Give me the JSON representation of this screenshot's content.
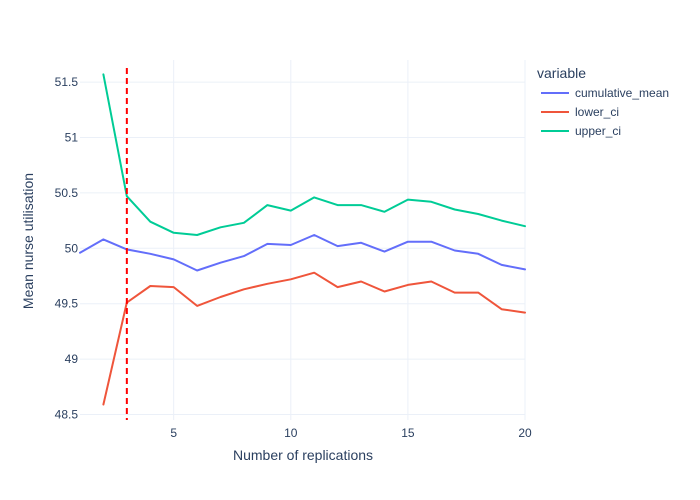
{
  "chart_data": {
    "type": "line",
    "title": "",
    "xlabel": "Number of replications",
    "ylabel": "Mean nurse utilisation",
    "xlim": [
      1,
      20
    ],
    "ylim": [
      48.45,
      51.7
    ],
    "xticks": [
      5,
      10,
      15,
      20
    ],
    "yticks": [
      48.5,
      49,
      49.5,
      50,
      50.5,
      51,
      51.5
    ],
    "grid": true,
    "legend": {
      "title": "variable",
      "placement": "right-top"
    },
    "vline": {
      "x": 3,
      "color": "#ff0000",
      "style": "dashed"
    },
    "series": [
      {
        "name": "cumulative_mean",
        "color": "#636efa",
        "x": [
          1,
          2,
          3,
          4,
          5,
          6,
          7,
          8,
          9,
          10,
          11,
          12,
          13,
          14,
          15,
          16,
          17,
          18,
          19,
          20
        ],
        "y": [
          49.96,
          50.08,
          49.99,
          49.95,
          49.9,
          49.8,
          49.87,
          49.93,
          50.04,
          50.03,
          50.12,
          50.02,
          50.05,
          49.97,
          50.06,
          50.06,
          49.98,
          49.95,
          49.85,
          49.81
        ]
      },
      {
        "name": "lower_ci",
        "color": "#ef553b",
        "x": [
          2,
          3,
          4,
          5,
          6,
          7,
          8,
          9,
          10,
          11,
          12,
          13,
          14,
          15,
          16,
          17,
          18,
          19,
          20
        ],
        "y": [
          48.59,
          49.51,
          49.66,
          49.65,
          49.48,
          49.56,
          49.63,
          49.68,
          49.72,
          49.78,
          49.65,
          49.7,
          49.61,
          49.67,
          49.7,
          49.6,
          49.6,
          49.45,
          49.42
        ]
      },
      {
        "name": "upper_ci",
        "color": "#00cc96",
        "x": [
          2,
          3,
          4,
          5,
          6,
          7,
          8,
          9,
          10,
          11,
          12,
          13,
          14,
          15,
          16,
          17,
          18,
          19,
          20
        ],
        "y": [
          51.57,
          50.47,
          50.24,
          50.14,
          50.12,
          50.19,
          50.23,
          50.39,
          50.34,
          50.46,
          50.39,
          50.39,
          50.33,
          50.44,
          50.42,
          50.35,
          50.31,
          50.25,
          50.2
        ]
      }
    ]
  }
}
